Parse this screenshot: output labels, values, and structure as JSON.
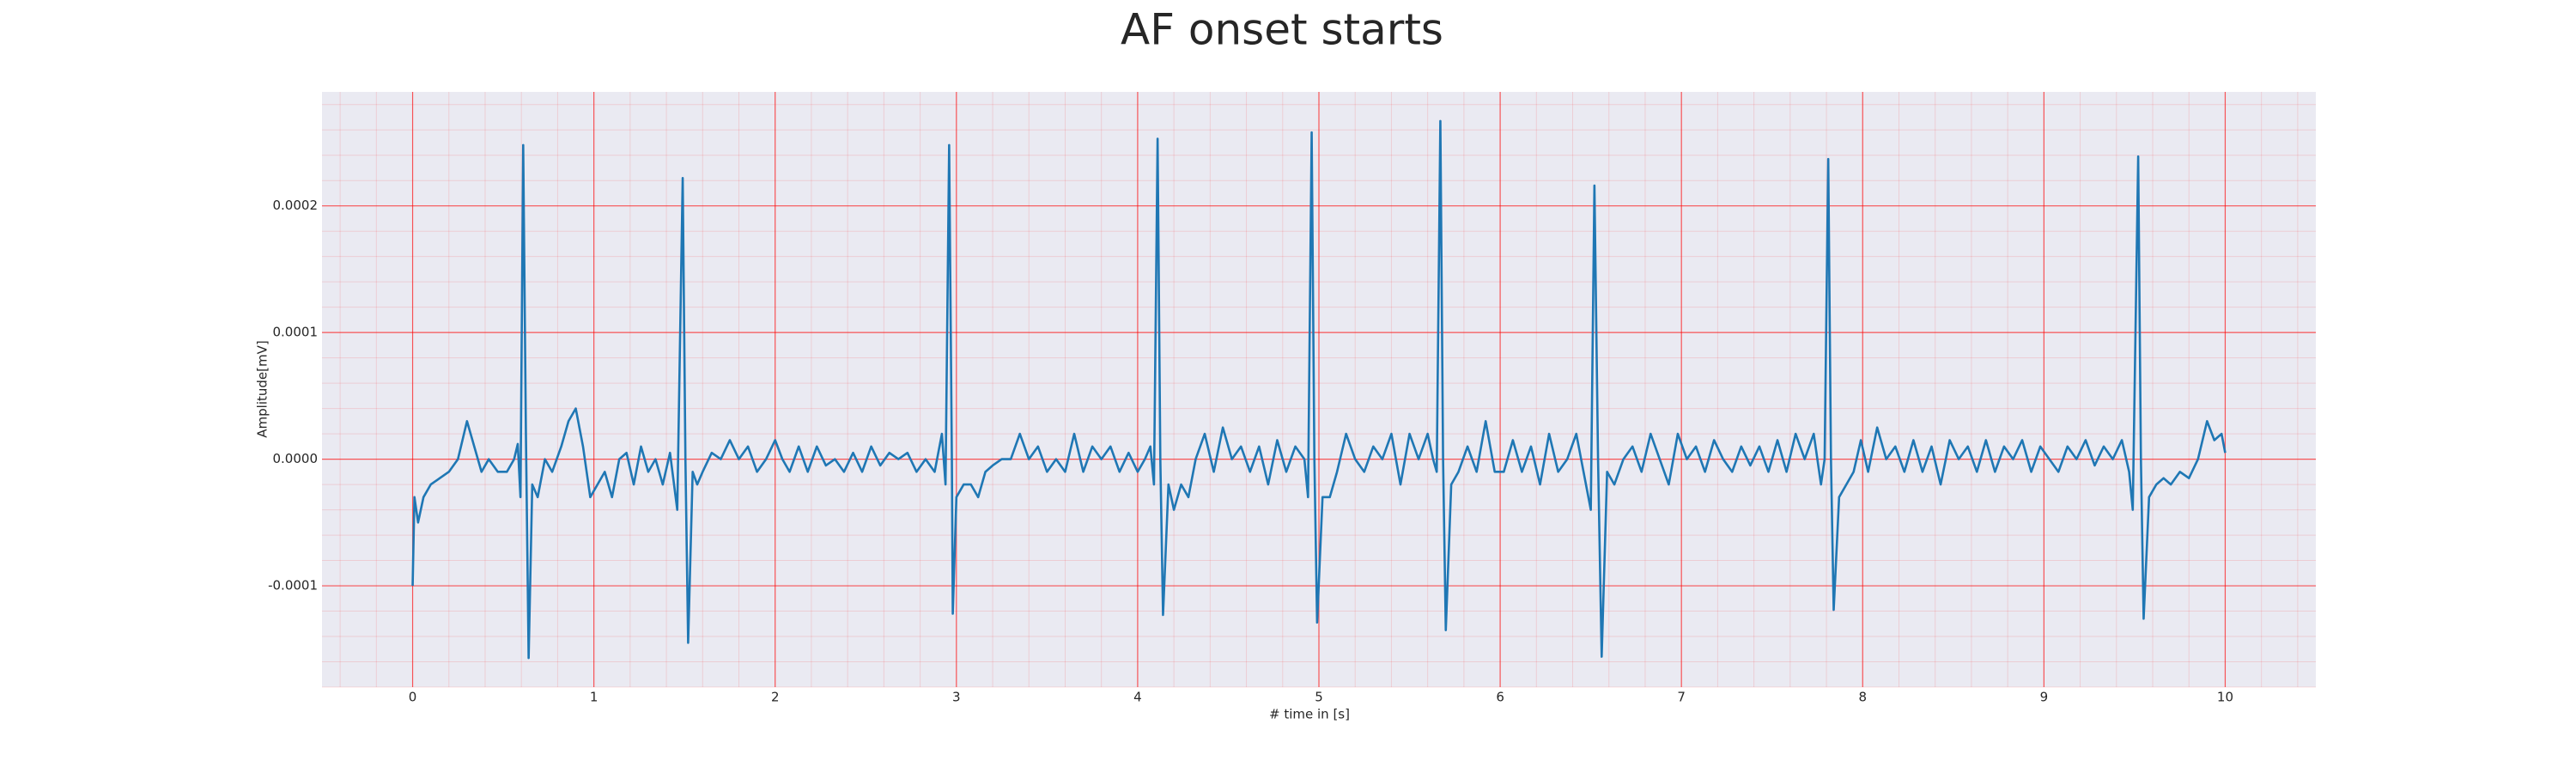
{
  "chart_data": {
    "type": "line",
    "title": "AF onset starts",
    "xlabel": "# time in [s]",
    "ylabel": "Amplitude[mV]",
    "xlim": [
      -0.5,
      10.5
    ],
    "ylim": [
      -0.00018,
      0.00029
    ],
    "xticks": [
      0,
      1,
      2,
      3,
      4,
      5,
      6,
      7,
      8,
      9,
      10
    ],
    "yticks": [
      -0.0001,
      {
        "value": 0,
        "label": "0.0000"
      },
      0.0001,
      0.0002
    ],
    "grid": true,
    "grid_color": "#ff0000",
    "minor_grid": true,
    "background": "#eaeaf2",
    "series": [
      {
        "color": "#1f77b4",
        "x": [
          0,
          0.01,
          0.03,
          0.06,
          0.1,
          0.15,
          0.2,
          0.25,
          0.3,
          0.34,
          0.38,
          0.42,
          0.47,
          0.52,
          0.56,
          0.58,
          0.595,
          0.61,
          0.625,
          0.64,
          0.66,
          0.69,
          0.73,
          0.77,
          0.82,
          0.86,
          0.9,
          0.94,
          0.98,
          1.02,
          1.06,
          1.1,
          1.14,
          1.18,
          1.22,
          1.26,
          1.3,
          1.34,
          1.38,
          1.42,
          1.46,
          1.49,
          1.505,
          1.52,
          1.545,
          1.57,
          1.6,
          1.65,
          1.7,
          1.75,
          1.8,
          1.85,
          1.9,
          1.95,
          2.0,
          2.04,
          2.08,
          2.13,
          2.18,
          2.23,
          2.28,
          2.33,
          2.38,
          2.43,
          2.48,
          2.53,
          2.58,
          2.63,
          2.68,
          2.73,
          2.78,
          2.83,
          2.88,
          2.92,
          2.94,
          2.96,
          2.975,
          2.98,
          3.0,
          3.04,
          3.08,
          3.12,
          3.16,
          3.2,
          3.25,
          3.3,
          3.35,
          3.4,
          3.45,
          3.5,
          3.55,
          3.6,
          3.65,
          3.7,
          3.75,
          3.8,
          3.85,
          3.9,
          3.95,
          4.0,
          4.04,
          4.07,
          4.09,
          4.11,
          4.125,
          4.14,
          4.17,
          4.2,
          4.24,
          4.28,
          4.32,
          4.37,
          4.42,
          4.47,
          4.52,
          4.57,
          4.62,
          4.67,
          4.72,
          4.77,
          4.82,
          4.87,
          4.92,
          4.94,
          4.96,
          4.975,
          4.99,
          5.02,
          5.06,
          5.1,
          5.15,
          5.2,
          5.25,
          5.3,
          5.35,
          5.4,
          5.45,
          5.5,
          5.55,
          5.6,
          5.63,
          5.65,
          5.67,
          5.685,
          5.7,
          5.73,
          5.77,
          5.82,
          5.87,
          5.92,
          5.97,
          6.02,
          6.07,
          6.12,
          6.17,
          6.22,
          6.27,
          6.32,
          6.37,
          6.42,
          6.46,
          6.5,
          6.52,
          6.54,
          6.56,
          6.59,
          6.63,
          6.68,
          6.73,
          6.78,
          6.83,
          6.88,
          6.93,
          6.98,
          7.03,
          7.08,
          7.13,
          7.18,
          7.23,
          7.28,
          7.33,
          7.38,
          7.43,
          7.48,
          7.53,
          7.58,
          7.63,
          7.68,
          7.73,
          7.77,
          7.79,
          7.81,
          7.825,
          7.84,
          7.87,
          7.91,
          7.95,
          7.99,
          8.03,
          8.08,
          8.13,
          8.18,
          8.23,
          8.28,
          8.33,
          8.38,
          8.43,
          8.48,
          8.53,
          8.58,
          8.63,
          8.68,
          8.73,
          8.78,
          8.83,
          8.88,
          8.93,
          8.98,
          9.03,
          9.08,
          9.13,
          9.18,
          9.23,
          9.28,
          9.33,
          9.38,
          9.43,
          9.47,
          9.49,
          9.52,
          9.535,
          9.55,
          9.58,
          9.62,
          9.66,
          9.7,
          9.75,
          9.8,
          9.85,
          9.9,
          9.94,
          9.98,
          10.0
        ],
        "values": [
          -0.0001,
          -3e-05,
          -5e-05,
          -3e-05,
          -2e-05,
          -1.5e-05,
          -1e-05,
          0.0,
          3e-05,
          1e-05,
          -1e-05,
          0.0,
          -1e-05,
          -1e-05,
          0.0,
          1.2e-05,
          -3e-05,
          0.000248,
          2e-05,
          -0.000157,
          -2e-05,
          -3e-05,
          0.0,
          -1e-05,
          1e-05,
          3e-05,
          4e-05,
          1e-05,
          -3e-05,
          -2e-05,
          -1e-05,
          -3e-05,
          0.0,
          5e-06,
          -2e-05,
          1e-05,
          -1e-05,
          0.0,
          -2e-05,
          5e-06,
          -4e-05,
          0.000222,
          0.0,
          -0.000145,
          -1e-05,
          -2e-05,
          -1e-05,
          5e-06,
          0.0,
          1.5e-05,
          0.0,
          1e-05,
          -1e-05,
          0.0,
          1.5e-05,
          0.0,
          -1e-05,
          1e-05,
          -1e-05,
          1e-05,
          -5e-06,
          0.0,
          -1e-05,
          5e-06,
          -1e-05,
          1e-05,
          -5e-06,
          5e-06,
          0.0,
          5e-06,
          -1e-05,
          0.0,
          -1e-05,
          2e-05,
          -2e-05,
          0.000248,
          0.0,
          -0.000122,
          -3e-05,
          -2e-05,
          -2e-05,
          -3e-05,
          -1e-05,
          -5e-06,
          0.0,
          0.0,
          2e-05,
          0.0,
          1e-05,
          -1e-05,
          0.0,
          -1e-05,
          2e-05,
          -1e-05,
          1e-05,
          0.0,
          1e-05,
          -1e-05,
          5e-06,
          -1e-05,
          0.0,
          1e-05,
          -2e-05,
          0.000253,
          0.0,
          -0.000123,
          -2e-05,
          -4e-05,
          -2e-05,
          -3e-05,
          0.0,
          2e-05,
          -1e-05,
          2.5e-05,
          0.0,
          1e-05,
          -1e-05,
          1e-05,
          -2e-05,
          1.5e-05,
          -1e-05,
          1e-05,
          0.0,
          -3e-05,
          0.000258,
          0.0,
          -0.000129,
          -3e-05,
          -3e-05,
          -1e-05,
          2e-05,
          0.0,
          -1e-05,
          1e-05,
          0.0,
          2e-05,
          -2e-05,
          2e-05,
          0.0,
          2e-05,
          0.0,
          -1e-05,
          0.000267,
          0.0,
          -0.000135,
          -2e-05,
          -1e-05,
          1e-05,
          -1e-05,
          3e-05,
          -1e-05,
          -1e-05,
          1.5e-05,
          -1e-05,
          1e-05,
          -2e-05,
          2e-05,
          -1e-05,
          0.0,
          2e-05,
          -1e-05,
          -4e-05,
          0.000216,
          0.0,
          -0.000156,
          -1e-05,
          -2e-05,
          0.0,
          1e-05,
          -1e-05,
          2e-05,
          0.0,
          -2e-05,
          2e-05,
          0.0,
          1e-05,
          -1e-05,
          1.5e-05,
          0.0,
          -1e-05,
          1e-05,
          -5e-06,
          1e-05,
          -1e-05,
          1.5e-05,
          -1e-05,
          2e-05,
          0.0,
          2e-05,
          -2e-05,
          0.0,
          0.000237,
          0.0,
          -0.000119,
          -3e-05,
          -2e-05,
          -1e-05,
          1.5e-05,
          -1e-05,
          2.5e-05,
          0.0,
          1e-05,
          -1e-05,
          1.5e-05,
          -1e-05,
          1e-05,
          -2e-05,
          1.5e-05,
          0.0,
          1e-05,
          -1e-05,
          1.5e-05,
          -1e-05,
          1e-05,
          0.0,
          1.5e-05,
          -1e-05,
          1e-05,
          0.0,
          -1e-05,
          1e-05,
          0.0,
          1.5e-05,
          -5e-06,
          1e-05,
          0.0,
          1.5e-05,
          -1e-05,
          -4e-05,
          0.000239,
          0.0,
          -0.000126,
          -3e-05,
          -2e-05,
          -1.5e-05,
          -2e-05,
          -1e-05,
          -1.5e-05,
          0.0,
          3e-05,
          1.5e-05,
          2e-05,
          5e-06
        ]
      }
    ]
  }
}
